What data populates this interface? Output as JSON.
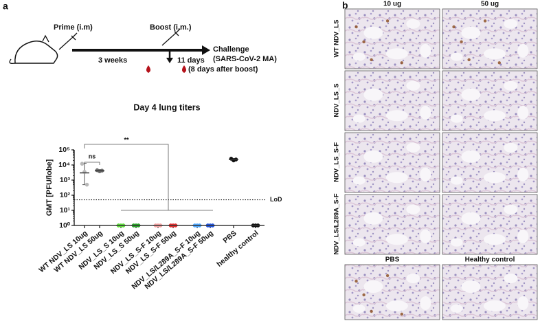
{
  "panel_labels": [
    "a",
    "b"
  ],
  "timeline": {
    "prime": "Prime (i.m)",
    "boost": "Boost (i.m.)",
    "challenge": [
      "Challenge",
      "(SARS-CoV-2 MA)"
    ],
    "interval_1": "3 weeks",
    "interval_2": "11 days",
    "bleed_note": "(8 days after boost)"
  },
  "chart_data": {
    "type": "dot",
    "title": "Day 4 lung titers",
    "ylabel": "GMT [PFU/lobe]",
    "log_y": true,
    "categories": [
      "WT NDV_LS 10ug",
      "WT NDV_LS 50ug",
      "NDV_LS_S 10ug",
      "NDV_LS_S 50ug",
      "NDV_LS_S-F 10ug",
      "NDV_LS_S-F 50ug",
      "NDV_LS/L289A_S-F 10ug",
      "NDV_LS/L289A_S-F 50ug",
      "PBS",
      "healthy control"
    ],
    "colors": [
      "#b8b8b8",
      "#707070",
      "#5fdc3c",
      "#2aa52a",
      "#f4a3a3",
      "#e33030",
      "#4fa8ff",
      "#2255dd",
      "#111111",
      "#111111"
    ],
    "values": [
      [
        12000,
        3500,
        500
      ],
      [
        4500,
        3800,
        4200
      ],
      [
        1,
        1,
        1
      ],
      [
        1,
        1,
        1
      ],
      [
        1,
        1,
        1
      ],
      [
        1,
        1,
        1
      ],
      [
        1,
        1,
        1
      ],
      [
        1,
        1,
        1
      ],
      [
        26000,
        20000,
        23000
      ],
      [
        1,
        1,
        1
      ]
    ],
    "means": [
      3000,
      4100,
      1,
      1,
      1,
      1,
      1,
      1,
      23000,
      1
    ],
    "error_bars": [
      [
        500,
        13000
      ],
      [
        3500,
        5000
      ],
      [
        1,
        1
      ],
      [
        1,
        1
      ],
      [
        1,
        1
      ],
      [
        1,
        1
      ],
      [
        1,
        1
      ],
      [
        1,
        1
      ],
      [
        19000,
        27000
      ],
      [
        1,
        1
      ]
    ],
    "ylim": [
      1,
      100000
    ],
    "yticks": [
      {
        "value": 1,
        "label": "10⁰"
      },
      {
        "value": 10,
        "label": "10¹"
      },
      {
        "value": 100,
        "label": "10²"
      },
      {
        "value": 1000,
        "label": "10³"
      },
      {
        "value": 10000,
        "label": "10⁴"
      },
      {
        "value": 100000,
        "label": "10⁵"
      }
    ],
    "lod": 50,
    "lod_label": "LoD",
    "annotations": [
      "ns",
      "**"
    ]
  },
  "histology": {
    "columns": [
      "10 ug",
      "50 ug"
    ],
    "rows": [
      {
        "label": "WT NDV_LS",
        "color": "#222222"
      },
      {
        "label": "NDV_LS_S",
        "color": "#3fb34f"
      },
      {
        "label": "NDV_LS_S-F",
        "color": "#e03a3a"
      },
      {
        "label": "NDV_LS/L289A_S-F",
        "color": "#2f6fe0"
      }
    ],
    "bottom_columns": [
      "PBS",
      "Healthy control"
    ]
  }
}
